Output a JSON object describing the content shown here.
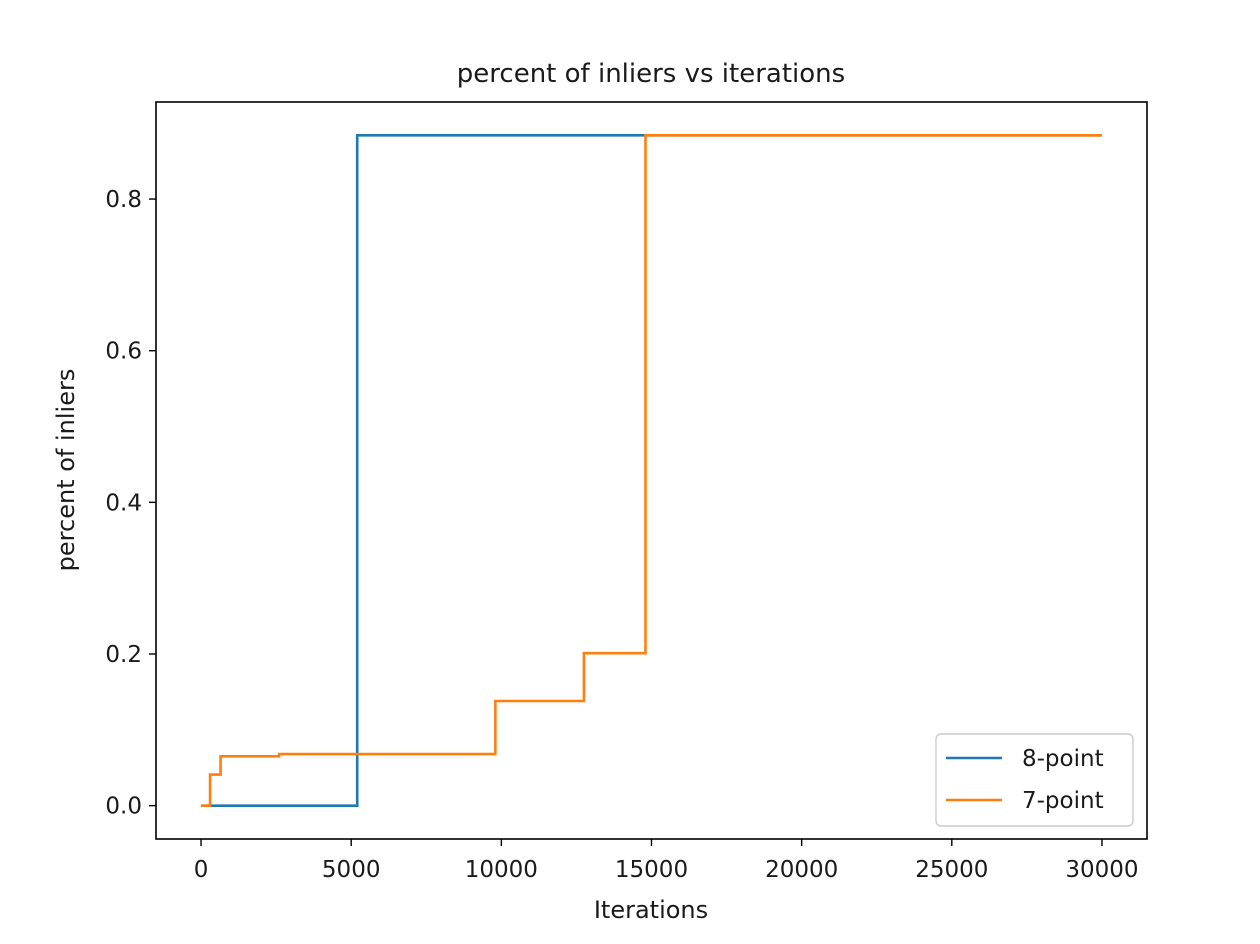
{
  "chart_data": {
    "type": "line",
    "title": "percent of inliers vs iterations",
    "xlabel": "Iterations",
    "ylabel": "percent of inliers",
    "xlim": [
      -1500,
      31500
    ],
    "ylim": [
      -0.044,
      0.928
    ],
    "xticks": [
      0,
      5000,
      10000,
      15000,
      20000,
      25000,
      30000
    ],
    "xtick_labels": [
      "0",
      "5000",
      "10000",
      "15000",
      "20000",
      "25000",
      "30000"
    ],
    "yticks": [
      0.0,
      0.2,
      0.4,
      0.6,
      0.8
    ],
    "ytick_labels": [
      "0.0",
      "0.2",
      "0.4",
      "0.6",
      "0.8"
    ],
    "grid": false,
    "legend_position": "lower-right",
    "step": "post",
    "series": [
      {
        "name": "8-point",
        "color": "#1f77b4",
        "x": [
          0,
          5200,
          30000
        ],
        "y": [
          0.0,
          0.884,
          0.884
        ]
      },
      {
        "name": "7-point",
        "color": "#ff7f0e",
        "x": [
          0,
          300,
          650,
          2600,
          9800,
          12750,
          14800,
          30000
        ],
        "y": [
          0.0,
          0.041,
          0.065,
          0.068,
          0.138,
          0.201,
          0.884,
          0.884
        ]
      }
    ]
  }
}
